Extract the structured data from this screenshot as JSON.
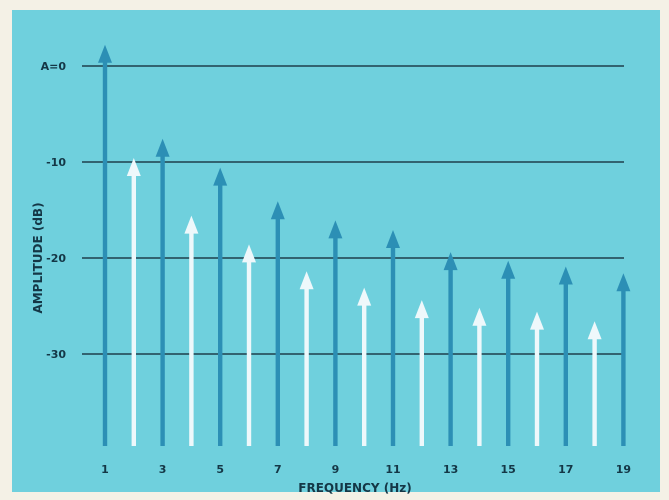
{
  "chart_data": {
    "type": "bar",
    "xlabel": "FREQUENCY (Hz)",
    "ylabel": "AMPLITUDE (dB)",
    "ylim": [
      -39,
      2
    ],
    "yticks": [
      {
        "value": 0,
        "label": "A=0"
      },
      {
        "value": -10,
        "label": "-10"
      },
      {
        "value": -20,
        "label": "-20"
      },
      {
        "value": -30,
        "label": "-30"
      }
    ],
    "x": [
      1,
      2,
      3,
      4,
      5,
      6,
      7,
      8,
      9,
      10,
      11,
      12,
      13,
      14,
      15,
      16,
      17,
      18,
      19
    ],
    "xtick_labels": [
      "1",
      "3",
      "5",
      "7",
      "9",
      "11",
      "13",
      "15",
      "17",
      "19"
    ],
    "series": [
      {
        "color": "#2c8fb5",
        "x": [
          1,
          3,
          5,
          7,
          9,
          11,
          13,
          15,
          17,
          19
        ],
        "values": [
          1.8,
          -8.0,
          -11.0,
          -14.5,
          -16.5,
          -17.5,
          -19.8,
          -20.7,
          -21.3,
          -22.0
        ]
      },
      {
        "color": "#eef8fb",
        "x": [
          2,
          4,
          6,
          8,
          10,
          12,
          14,
          16,
          18
        ],
        "values": [
          -10.0,
          -16.0,
          -19.0,
          -21.8,
          -23.5,
          -24.8,
          -25.6,
          -26.0,
          -27.0
        ]
      }
    ],
    "background_color": "#6fd0dd",
    "grid": true
  }
}
